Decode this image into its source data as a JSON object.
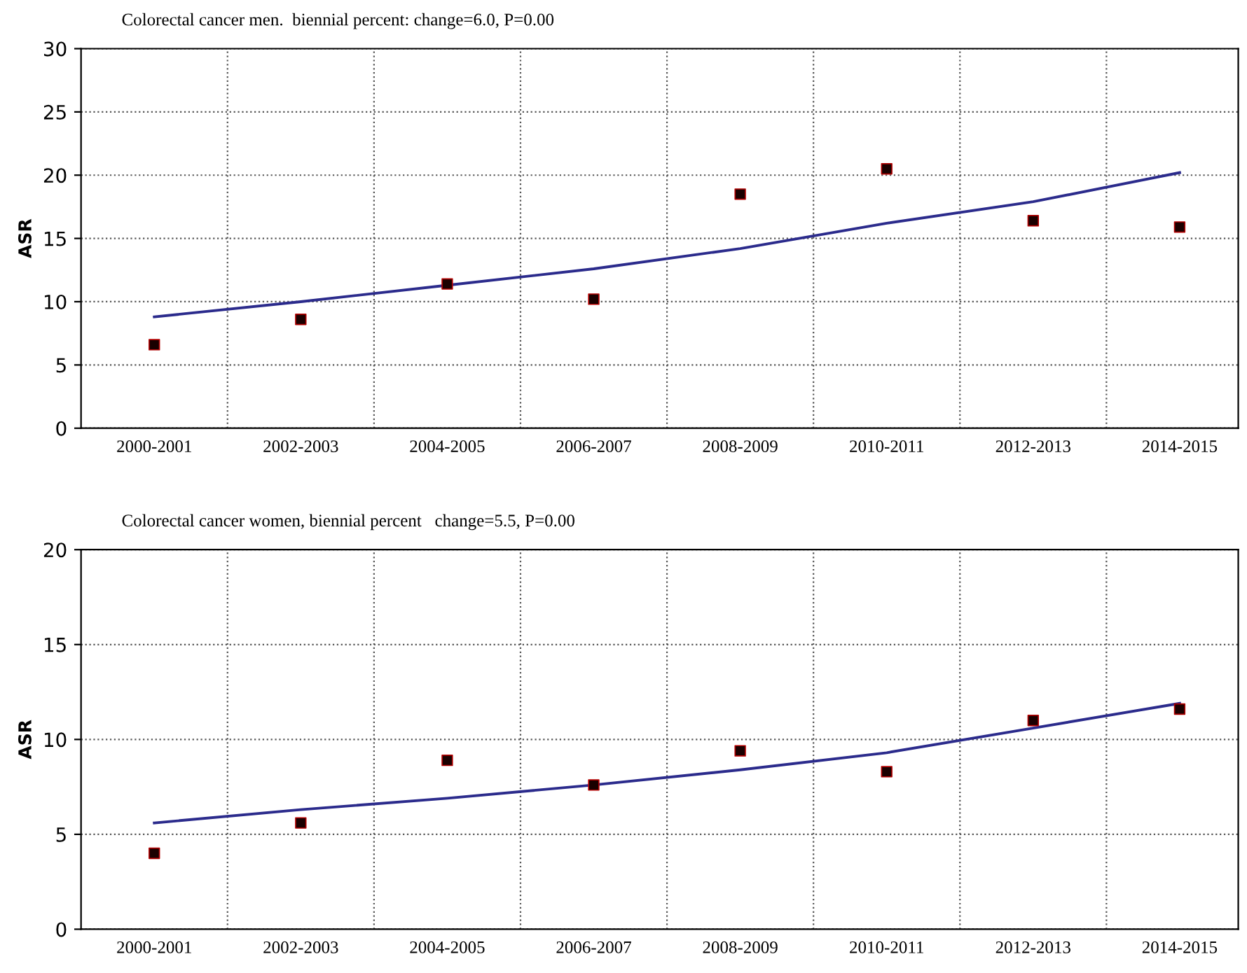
{
  "chart_data": [
    {
      "type": "scatter",
      "title": "Colorectal cancer men.  biennial percent: change=6.0, P=0.00",
      "ylabel": "ASR",
      "categories": [
        "2000-2001",
        "2002-2003",
        "2004-2005",
        "2006-2007",
        "2008-2009",
        "2010-2011",
        "2012-2013",
        "2014-2015"
      ],
      "series": [
        {
          "color": "#1a0000",
          "marker": "square",
          "values": [
            6.6,
            8.6,
            11.4,
            10.2,
            18.5,
            20.5,
            16.4,
            15.9
          ]
        },
        {
          "type": "line",
          "color": "#2b2b8c",
          "marker": "none",
          "line_style": "solid",
          "values": [
            8.8,
            10.0,
            11.3,
            12.6,
            14.2,
            16.2,
            17.9,
            20.2
          ]
        }
      ],
      "ylim": [
        0,
        30
      ],
      "yticks": [
        0,
        5,
        10,
        15,
        20,
        25,
        30
      ],
      "grid": true,
      "legend": false
    },
    {
      "type": "scatter",
      "title": "Colorectal cancer women, biennial percent   change=5.5, P=0.00",
      "ylabel": "ASR",
      "categories": [
        "2000-2001",
        "2002-2003",
        "2004-2005",
        "2006-2007",
        "2008-2009",
        "2010-2011",
        "2012-2013",
        "2014-2015"
      ],
      "series": [
        {
          "color": "#1a0000",
          "marker": "square",
          "values": [
            4.0,
            5.6,
            8.9,
            7.6,
            9.4,
            8.3,
            11.0,
            11.6
          ]
        },
        {
          "type": "line",
          "color": "#2b2b8c",
          "marker": "none",
          "line_style": "solid",
          "values": [
            5.6,
            6.3,
            6.9,
            7.6,
            8.4,
            9.3,
            10.6,
            11.9
          ]
        }
      ],
      "ylim": [
        0,
        20
      ],
      "yticks": [
        0,
        5,
        10,
        15,
        20
      ],
      "grid": true,
      "legend": false
    }
  ]
}
